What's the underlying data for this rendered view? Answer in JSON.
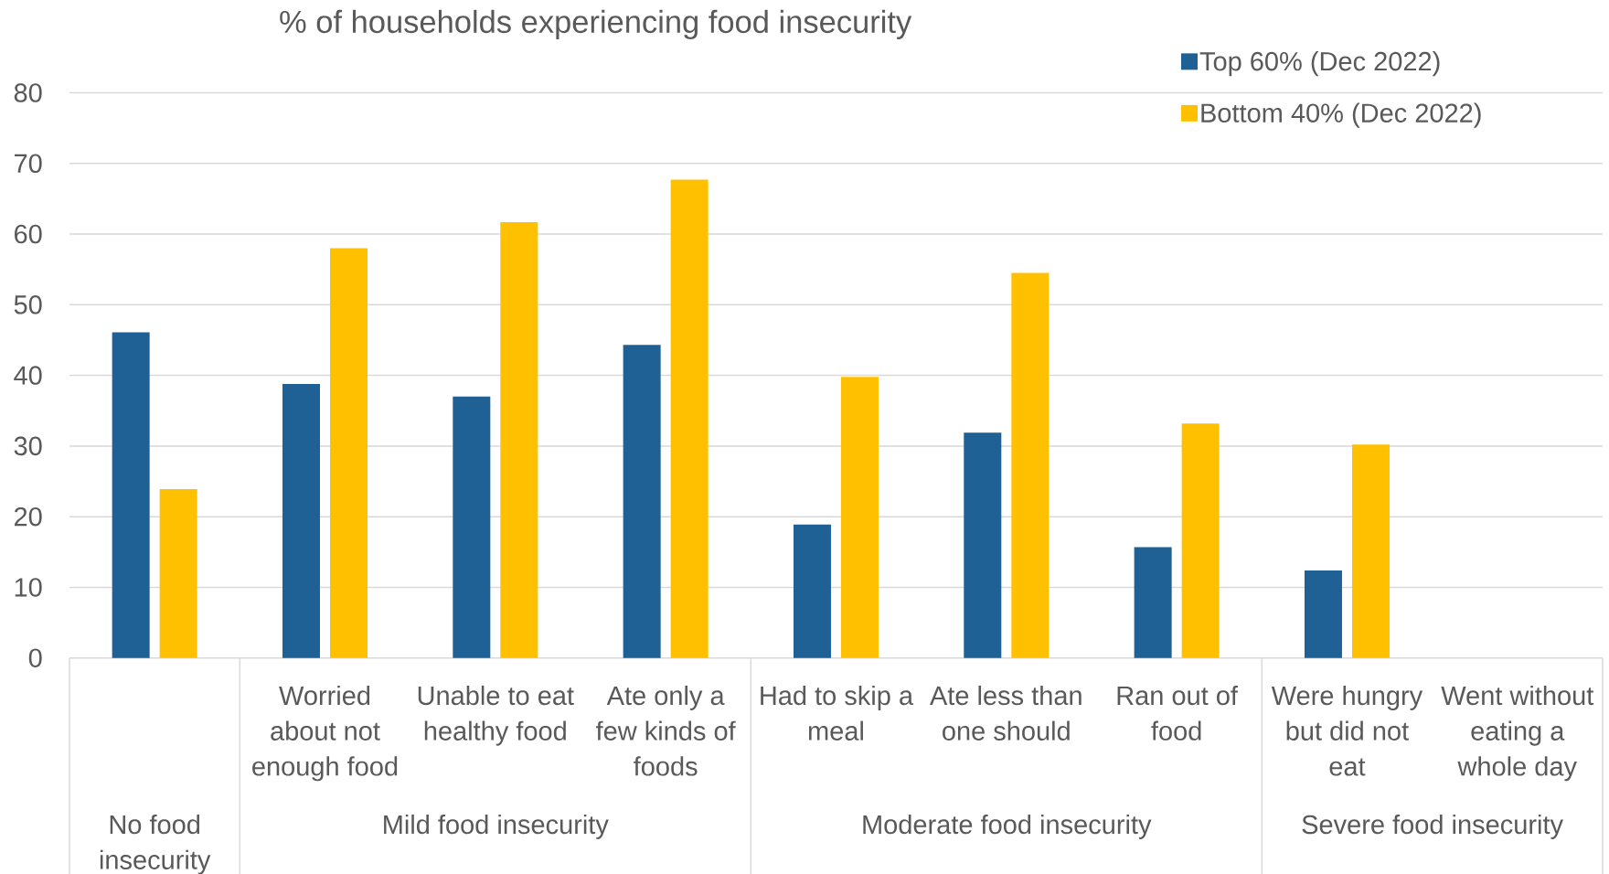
{
  "chart_data": {
    "type": "bar",
    "title": "% of households experiencing food insecurity",
    "categories": [
      null,
      "Worried about not enough food",
      "Unable to eat healthy food",
      "Ate only a few kinds of foods",
      "Had to skip a meal",
      "Ate less than one should",
      "Ran out of food",
      "Were hungry but did not eat",
      "Went without eating a whole day"
    ],
    "series": [
      {
        "name": "Top 60% (Dec 2022)",
        "color": "#1f6194",
        "values": [
          46.1,
          38.8,
          37.0,
          44.3,
          18.9,
          31.9,
          15.7,
          12.4,
          null
        ]
      },
      {
        "name": "Bottom 40% (Dec 2022)",
        "color": "#ffc000",
        "values": [
          23.9,
          58.0,
          61.7,
          67.7,
          39.8,
          54.5,
          33.2,
          30.2,
          null
        ]
      }
    ],
    "annotations": [
      "No food insecurity",
      "Mild food insecurity",
      "Moderate food insecurity",
      "Severe food insecurity"
    ],
    "ylim": [
      0,
      80
    ],
    "yticks": [
      0,
      10,
      20,
      30,
      40,
      50,
      60,
      70,
      80
    ],
    "grid": "y",
    "legend": "top right"
  }
}
